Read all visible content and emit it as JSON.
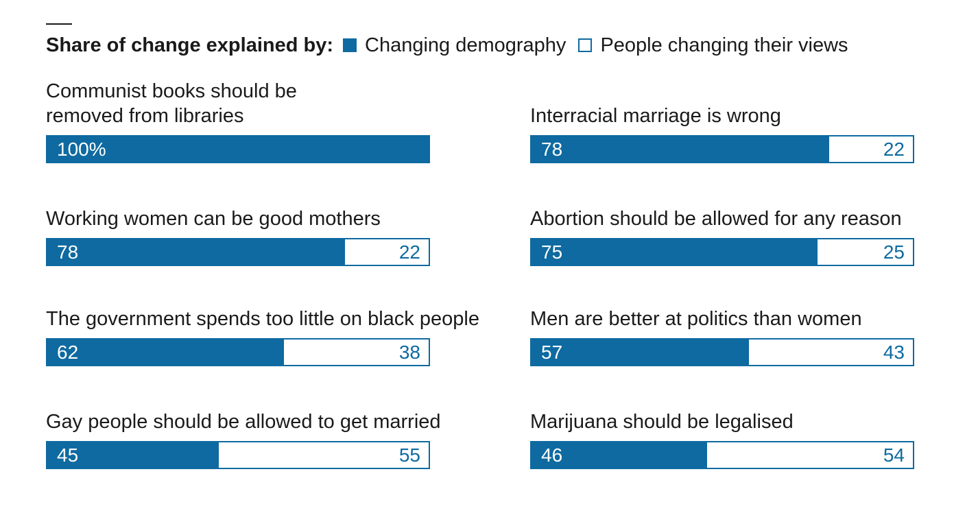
{
  "legend": {
    "title": "Share of change explained by:",
    "items": [
      {
        "label": "Changing demography",
        "color": "#0e6aa0",
        "filled": true
      },
      {
        "label": "People changing their views",
        "color": "#0e6aa0",
        "filled": false
      }
    ]
  },
  "colors": {
    "demography": "#0e6aa0",
    "views_fill": "#ffffff"
  },
  "chart_data": {
    "type": "bar",
    "stacked": true,
    "orientation": "horizontal",
    "unit": "%",
    "xlim": [
      0,
      100
    ],
    "categories": [
      "Communist books should be\nremoved from libraries",
      "Interracial marriage is wrong",
      "Working women can be good mothers",
      "Abortion should be allowed for any reason",
      "The government spends too little on black people",
      "Men are better at politics than women",
      "Gay people should be allowed to get married",
      "Marijuana should be legalised"
    ],
    "series": [
      {
        "name": "Changing demography",
        "values": [
          100,
          78,
          78,
          75,
          62,
          57,
          45,
          46
        ]
      },
      {
        "name": "People changing their views",
        "values": [
          0,
          22,
          22,
          25,
          38,
          43,
          55,
          54
        ]
      }
    ],
    "data_labels": [
      [
        "100%",
        ""
      ],
      [
        "78",
        "22"
      ],
      [
        "78",
        "22"
      ],
      [
        "75",
        "25"
      ],
      [
        "62",
        "38"
      ],
      [
        "57",
        "43"
      ],
      [
        "45",
        "55"
      ],
      [
        "46",
        "54"
      ]
    ]
  }
}
